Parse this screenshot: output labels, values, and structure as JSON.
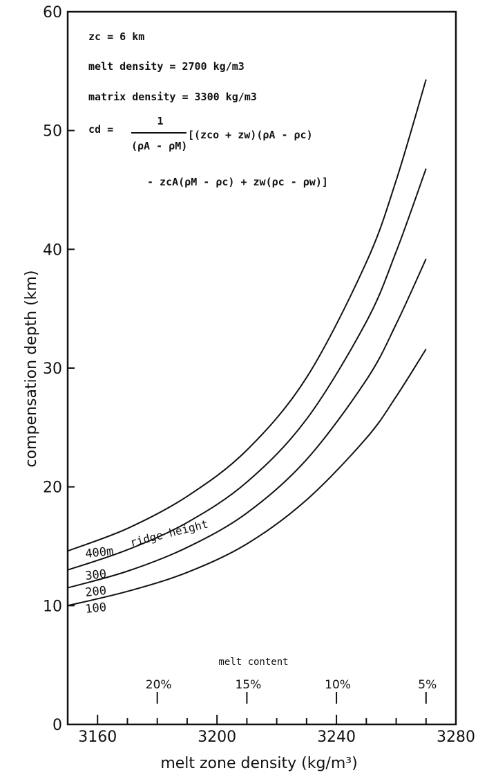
{
  "chart_data": {
    "type": "line",
    "xlabel": "melt zone density (kg/m³)",
    "ylabel": "compensation depth (km)",
    "xlim": [
      3150,
      3280
    ],
    "ylim": [
      0,
      60
    ],
    "x_ticks": [
      3160,
      3200,
      3240,
      3280
    ],
    "y_ticks": [
      0,
      10,
      20,
      30,
      40,
      50,
      60
    ],
    "x_minor_ticks": [
      3160,
      3170,
      3180,
      3190,
      3200,
      3210,
      3220,
      3230,
      3240,
      3250,
      3260,
      3270
    ],
    "secondary_axis": {
      "label": "melt content",
      "ticks": [
        {
          "x": 3180,
          "label": "20%"
        },
        {
          "x": 3210,
          "label": "15%"
        },
        {
          "x": 3240,
          "label": "10%"
        },
        {
          "x": 3270,
          "label": "5%"
        }
      ]
    },
    "annotations": [
      "zc = 6 km",
      "melt density = 2700 kg/m3",
      "matrix density = 3300 kg/m3"
    ],
    "formula": {
      "lhs": "cd =",
      "numerator": "1",
      "denominator": "(ρA - ρM)",
      "line1": "[(zco + zw)(ρA - ρc)",
      "line2": "- zcA(ρM - ρc) + zw(ρc - ρw)]"
    },
    "series_label_suffix": "ridge height",
    "series": [
      {
        "name": "400m",
        "x": [
          3150,
          3170,
          3190,
          3210,
          3230,
          3250,
          3260,
          3270
        ],
        "y": [
          14.6,
          16.5,
          19.2,
          23.1,
          29.2,
          38.9,
          45.8,
          54.3
        ]
      },
      {
        "name": "300",
        "x": [
          3150,
          3170,
          3190,
          3210,
          3230,
          3250,
          3260,
          3270
        ],
        "y": [
          13.0,
          14.7,
          17.0,
          20.4,
          25.7,
          33.9,
          39.8,
          46.8
        ]
      },
      {
        "name": "200",
        "x": [
          3150,
          3170,
          3190,
          3210,
          3230,
          3250,
          3260,
          3270
        ],
        "y": [
          11.5,
          12.9,
          14.9,
          17.8,
          22.3,
          29.0,
          33.7,
          39.2
        ]
      },
      {
        "name": "100",
        "x": [
          3150,
          3170,
          3190,
          3210,
          3230,
          3250,
          3260,
          3270
        ],
        "y": [
          10.0,
          11.2,
          12.8,
          15.2,
          18.9,
          24.1,
          27.6,
          31.6
        ]
      }
    ],
    "grid": false
  }
}
